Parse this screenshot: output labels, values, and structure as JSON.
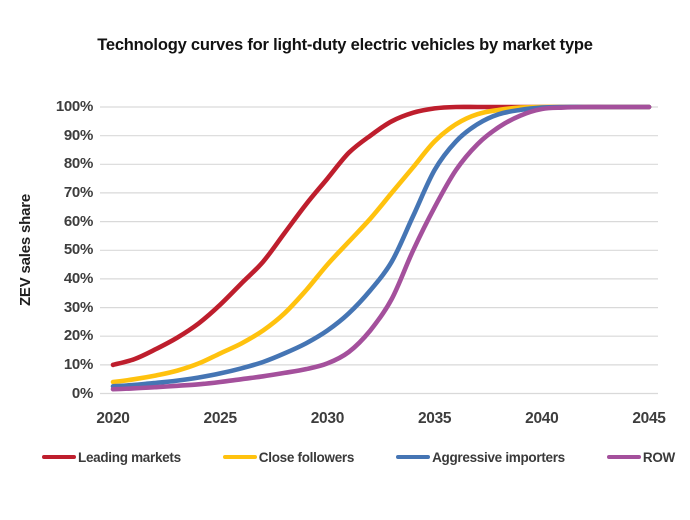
{
  "title": "Technology curves for light-duty electric vehicles by market type",
  "y_axis": {
    "label": "ZEV sales share",
    "ticks": [
      "0%",
      "10%",
      "20%",
      "30%",
      "40%",
      "50%",
      "60%",
      "70%",
      "80%",
      "90%",
      "100%"
    ]
  },
  "x_axis": {
    "ticks": [
      "2020",
      "2025",
      "2030",
      "2035",
      "2040",
      "2045"
    ]
  },
  "chart_data": {
    "type": "line",
    "title": "Technology curves for light-duty electric vehicles by market type",
    "xlabel": "",
    "ylabel": "ZEV sales share",
    "xlim": [
      2020,
      2045
    ],
    "ylim": [
      0,
      100
    ],
    "grid": true,
    "legend_position": "bottom",
    "x": [
      2020,
      2021,
      2022,
      2023,
      2024,
      2025,
      2026,
      2027,
      2028,
      2029,
      2030,
      2031,
      2032,
      2033,
      2034,
      2035,
      2036,
      2037,
      2038,
      2039,
      2040,
      2041,
      2042,
      2043,
      2044,
      2045
    ],
    "series": [
      {
        "name": "Leading markets",
        "color": "#be1e2d",
        "values": [
          10,
          12,
          15.5,
          19.5,
          24.5,
          31,
          38.5,
          46,
          56,
          66,
          75,
          84,
          90,
          95,
          98,
          99.5,
          100,
          100,
          100,
          100,
          100,
          100,
          100,
          100,
          100,
          100
        ]
      },
      {
        "name": "Close followers",
        "color": "#ffc20e",
        "values": [
          4,
          5,
          6.3,
          8,
          10.5,
          14,
          17.5,
          22,
          28,
          36,
          45,
          53,
          61,
          70,
          79,
          88,
          94,
          97.5,
          99,
          99.8,
          100,
          100,
          100,
          100,
          100,
          100
        ]
      },
      {
        "name": "Aggressive importers",
        "color": "#4575b4",
        "values": [
          2.5,
          3,
          3.7,
          4.5,
          5.6,
          7,
          8.8,
          11,
          14,
          17.5,
          22,
          28,
          36,
          46,
          62,
          78,
          88,
          94,
          97.5,
          99,
          99.8,
          100,
          100,
          100,
          100,
          100
        ]
      },
      {
        "name": "ROW",
        "color": "#a4509c",
        "values": [
          1.5,
          1.8,
          2.2,
          2.7,
          3.2,
          4,
          5,
          6,
          7.2,
          8.5,
          10.5,
          14.5,
          22,
          33,
          50,
          65,
          78,
          87,
          93,
          97,
          99.3,
          99.8,
          100,
          100,
          100,
          100
        ]
      }
    ]
  }
}
